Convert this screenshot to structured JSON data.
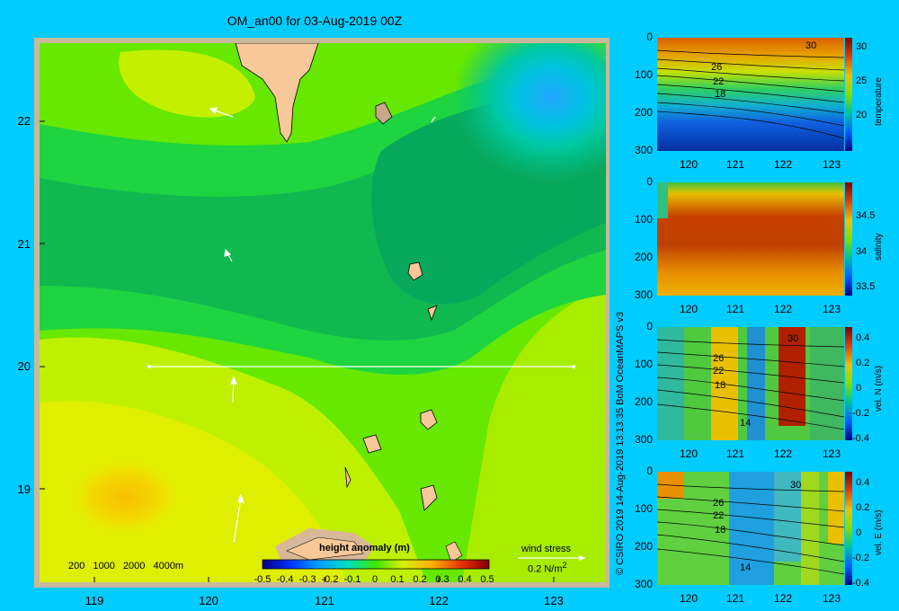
{
  "map": {
    "title": "OM_an00 for 03-Aug-2019 00Z",
    "lat_ticks": [
      "22",
      "21",
      "20",
      "19"
    ],
    "lon_ticks": [
      "119",
      "120",
      "121",
      "122",
      "123"
    ],
    "depth_legend": "200 1000 2000 4000m",
    "colorbar_title": "height anomaly (m)",
    "colorbar_ticks": [
      "-0.5",
      "-0.4",
      "-0.3",
      "-0.2",
      "-0.1",
      "0",
      "0.1",
      "0.2",
      "0.3",
      "0.4",
      "0.5"
    ],
    "wind_stress_label": "wind stress",
    "wind_stress_unit": "0.2 N/m",
    "wind_stress_exp": "2"
  },
  "credit": "© CSIRO 2019   14-Aug-2019 13:13:35 BoM OceanMAPS v3",
  "panels": [
    {
      "var_label": "temperature",
      "y_ticks": [
        "0",
        "100",
        "200",
        "300"
      ],
      "x_ticks": [
        "120",
        "121",
        "122",
        "123"
      ],
      "cbar_ticks": [
        "30",
        "25",
        "20"
      ],
      "contour_labels": [
        "30",
        "26",
        "22",
        "18"
      ]
    },
    {
      "var_label": "salinity",
      "y_ticks": [
        "0",
        "100",
        "200",
        "300"
      ],
      "x_ticks": [
        "120",
        "121",
        "122",
        "123"
      ],
      "cbar_ticks": [
        "34.5",
        "34",
        "33.5"
      ],
      "contour_labels": []
    },
    {
      "var_label": "vel. N  (m/s)",
      "y_ticks": [
        "0",
        "100",
        "200",
        "300"
      ],
      "x_ticks": [
        "120",
        "121",
        "122",
        "123"
      ],
      "cbar_ticks": [
        "0.4",
        "0.2",
        "0",
        "-0.2",
        "-0.4"
      ],
      "contour_labels": [
        "30",
        "26",
        "22",
        "18",
        "14"
      ]
    },
    {
      "var_label": "vel. E  (m/s)",
      "y_ticks": [
        "0",
        "100",
        "200",
        "300"
      ],
      "x_ticks": [
        "120",
        "121",
        "122",
        "123"
      ],
      "cbar_ticks": [
        "0.4",
        "0.2",
        "0",
        "-0.2",
        "-0.4"
      ],
      "contour_labels": [
        "30",
        "26",
        "22",
        "18",
        "14"
      ]
    }
  ]
}
